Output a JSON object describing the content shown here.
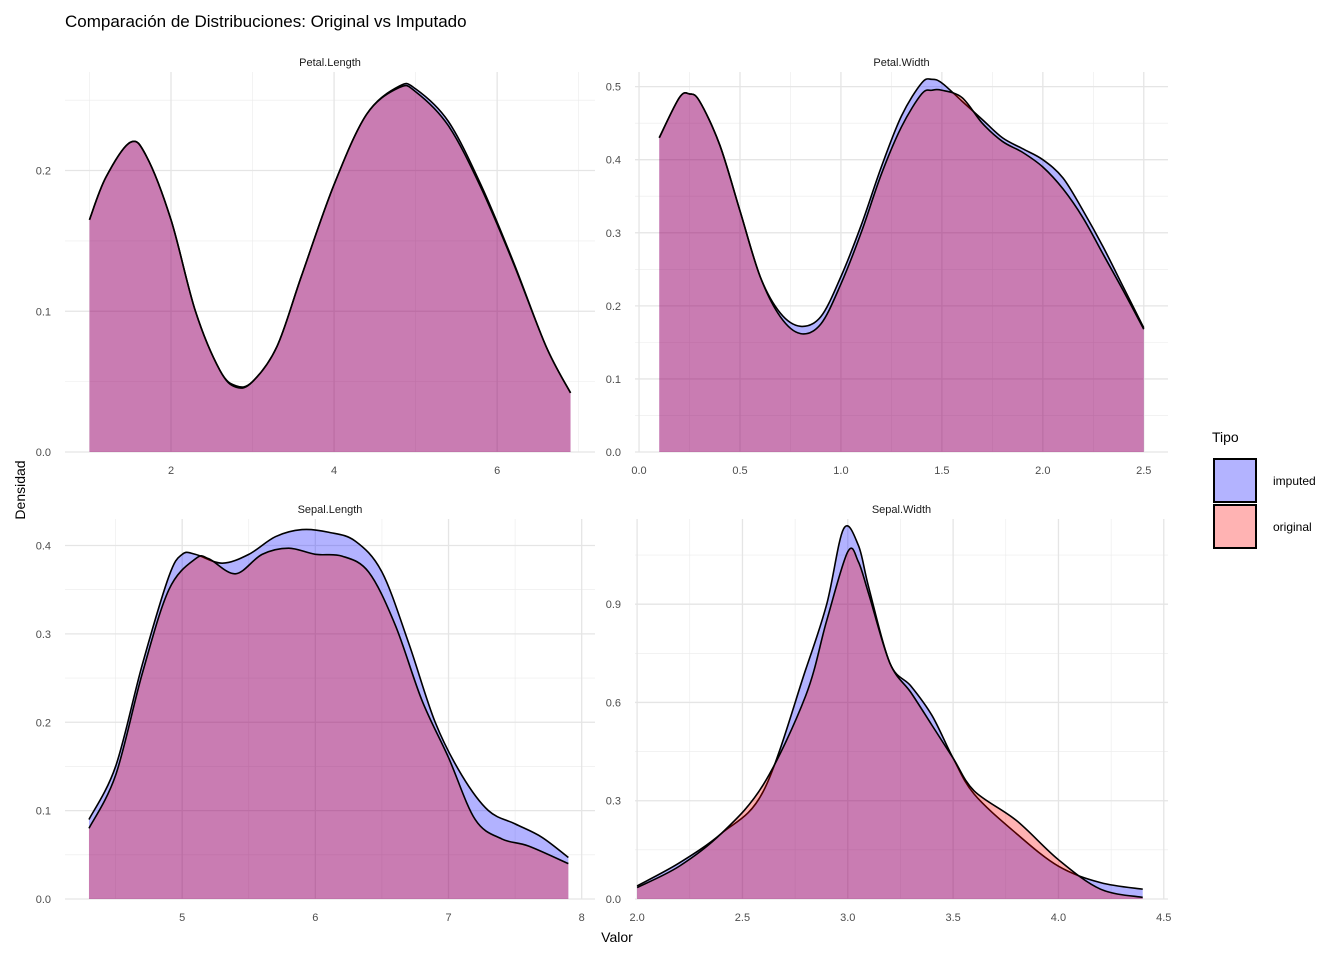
{
  "chart_data": {
    "type": "area",
    "title": "Comparación de Distribuciones: Original vs Imputado",
    "xlabel": "Valor",
    "ylabel": "Densidad",
    "legend": {
      "title": "Tipo",
      "placement": "right",
      "entries": [
        "imputed",
        "original"
      ]
    },
    "colors": {
      "imputed": "#0000ff",
      "original": "#ff0000",
      "fill_alpha": 0.3,
      "outline": "#000000"
    },
    "panels": [
      {
        "name": "Petal.Length",
        "xlim": [
          0.7,
          7.2
        ],
        "ylim": [
          0,
          0.27
        ],
        "xticks": [
          2,
          4,
          6
        ],
        "xtick_labels": [
          "2",
          "4",
          "6"
        ],
        "yticks": [
          0,
          0.1,
          0.2
        ],
        "ytick_labels": [
          "0.0",
          "0.1",
          "0.2"
        ],
        "series": [
          {
            "name": "imputed",
            "x": [
              1.0,
              1.2,
              1.5,
              1.7,
              2.0,
              2.3,
              2.6,
              2.8,
              3.0,
              3.3,
              3.6,
              4.0,
              4.4,
              4.8,
              5.0,
              5.4,
              5.8,
              6.2,
              6.6,
              6.9
            ],
            "y": [
              0.165,
              0.195,
              0.22,
              0.21,
              0.165,
              0.1,
              0.058,
              0.047,
              0.05,
              0.075,
              0.125,
              0.19,
              0.24,
              0.26,
              0.258,
              0.235,
              0.19,
              0.135,
              0.075,
              0.042
            ]
          },
          {
            "name": "original",
            "x": [
              1.0,
              1.2,
              1.5,
              1.7,
              2.0,
              2.3,
              2.6,
              2.8,
              3.0,
              3.3,
              3.6,
              4.0,
              4.4,
              4.8,
              5.0,
              5.4,
              5.8,
              6.2,
              6.6,
              6.9
            ],
            "y": [
              0.165,
              0.195,
              0.22,
              0.21,
              0.165,
              0.1,
              0.058,
              0.046,
              0.05,
              0.075,
              0.125,
              0.19,
              0.24,
              0.259,
              0.256,
              0.232,
              0.188,
              0.134,
              0.075,
              0.042
            ]
          }
        ]
      },
      {
        "name": "Petal.Width",
        "xlim": [
          -0.02,
          2.62
        ],
        "ylim": [
          0,
          0.52
        ],
        "xticks": [
          0,
          0.5,
          1.0,
          1.5,
          2.0,
          2.5
        ],
        "xtick_labels": [
          "0.0",
          "0.5",
          "1.0",
          "1.5",
          "2.0",
          "2.5"
        ],
        "yticks": [
          0,
          0.1,
          0.2,
          0.3,
          0.4,
          0.5
        ],
        "ytick_labels": [
          "0.0",
          "0.1",
          "0.2",
          "0.3",
          "0.4",
          "0.5"
        ],
        "series": [
          {
            "name": "imputed",
            "x": [
              0.1,
              0.2,
              0.25,
              0.3,
              0.4,
              0.5,
              0.6,
              0.7,
              0.8,
              0.9,
              1.0,
              1.1,
              1.2,
              1.3,
              1.4,
              1.45,
              1.5,
              1.6,
              1.7,
              1.8,
              1.9,
              2.0,
              2.1,
              2.2,
              2.3,
              2.4,
              2.5
            ],
            "y": [
              0.43,
              0.485,
              0.49,
              0.48,
              0.42,
              0.33,
              0.24,
              0.19,
              0.172,
              0.185,
              0.24,
              0.31,
              0.39,
              0.46,
              0.505,
              0.51,
              0.505,
              0.48,
              0.455,
              0.43,
              0.415,
              0.4,
              0.375,
              0.33,
              0.28,
              0.225,
              0.17
            ]
          },
          {
            "name": "original",
            "x": [
              0.1,
              0.2,
              0.25,
              0.3,
              0.4,
              0.5,
              0.6,
              0.7,
              0.8,
              0.9,
              1.0,
              1.1,
              1.2,
              1.3,
              1.4,
              1.45,
              1.5,
              1.6,
              1.7,
              1.8,
              1.9,
              2.0,
              2.1,
              2.2,
              2.3,
              2.4,
              2.5
            ],
            "y": [
              0.43,
              0.485,
              0.49,
              0.48,
              0.42,
              0.33,
              0.24,
              0.185,
              0.162,
              0.175,
              0.23,
              0.3,
              0.38,
              0.445,
              0.49,
              0.495,
              0.495,
              0.485,
              0.45,
              0.425,
              0.41,
              0.39,
              0.36,
              0.32,
              0.27,
              0.22,
              0.168
            ]
          }
        ]
      },
      {
        "name": "Sepal.Length",
        "xlim": [
          4.12,
          8.1
        ],
        "ylim": [
          0,
          0.43
        ],
        "xticks": [
          5,
          6,
          7,
          8
        ],
        "xtick_labels": [
          "5",
          "6",
          "7",
          "8"
        ],
        "yticks": [
          0,
          0.1,
          0.2,
          0.3,
          0.4
        ],
        "ytick_labels": [
          "0.0",
          "0.1",
          "0.2",
          "0.3",
          "0.4"
        ],
        "series": [
          {
            "name": "imputed",
            "x": [
              4.3,
              4.5,
              4.7,
              4.9,
              5.0,
              5.1,
              5.3,
              5.5,
              5.7,
              5.9,
              6.1,
              6.3,
              6.5,
              6.7,
              6.9,
              7.1,
              7.3,
              7.5,
              7.7,
              7.9
            ],
            "y": [
              0.09,
              0.15,
              0.265,
              0.365,
              0.39,
              0.39,
              0.38,
              0.39,
              0.41,
              0.418,
              0.415,
              0.405,
              0.37,
              0.29,
              0.2,
              0.14,
              0.1,
              0.085,
              0.07,
              0.047
            ]
          },
          {
            "name": "original",
            "x": [
              4.3,
              4.5,
              4.7,
              4.9,
              5.1,
              5.2,
              5.4,
              5.6,
              5.8,
              6.0,
              6.2,
              6.4,
              6.6,
              6.8,
              7.0,
              7.2,
              7.4,
              7.6,
              7.9
            ],
            "y": [
              0.08,
              0.14,
              0.255,
              0.35,
              0.385,
              0.385,
              0.368,
              0.39,
              0.397,
              0.39,
              0.388,
              0.37,
              0.31,
              0.225,
              0.16,
              0.09,
              0.068,
              0.06,
              0.04
            ]
          }
        ]
      },
      {
        "name": "Sepal.Width",
        "xlim": [
          1.99,
          4.52
        ],
        "ylim": [
          0,
          1.16
        ],
        "xticks": [
          2.0,
          2.5,
          3.0,
          3.5,
          4.0,
          4.5
        ],
        "xtick_labels": [
          "2.0",
          "2.5",
          "3.0",
          "3.5",
          "4.0",
          "4.5"
        ],
        "yticks": [
          0,
          0.3,
          0.6,
          0.9
        ],
        "ytick_labels": [
          "0.0",
          "0.3",
          "0.6",
          "0.9"
        ],
        "series": [
          {
            "name": "imputed",
            "x": [
              2.0,
              2.2,
              2.4,
              2.6,
              2.8,
              2.9,
              2.98,
              3.05,
              3.1,
              3.2,
              3.3,
              3.4,
              3.5,
              3.6,
              3.8,
              4.0,
              4.2,
              4.4
            ],
            "y": [
              0.04,
              0.11,
              0.2,
              0.33,
              0.7,
              0.9,
              1.13,
              1.08,
              0.95,
              0.72,
              0.65,
              0.56,
              0.43,
              0.32,
              0.2,
              0.1,
              0.05,
              0.03
            ]
          },
          {
            "name": "original",
            "x": [
              2.0,
              2.2,
              2.4,
              2.6,
              2.8,
              2.9,
              3.0,
              3.05,
              3.1,
              3.2,
              3.3,
              3.4,
              3.5,
              3.6,
              3.8,
              4.0,
              4.2,
              4.4
            ],
            "y": [
              0.035,
              0.1,
              0.2,
              0.35,
              0.62,
              0.85,
              1.06,
              1.03,
              0.93,
              0.72,
              0.63,
              0.53,
              0.43,
              0.33,
              0.24,
              0.12,
              0.03,
              0.005
            ]
          }
        ]
      }
    ]
  }
}
